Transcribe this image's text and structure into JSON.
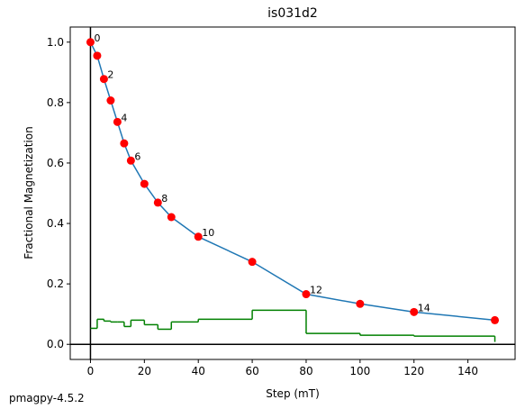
{
  "chart_data": {
    "type": "line",
    "title": "is031d2",
    "xlabel": "Step (mT)",
    "ylabel": "Fractional Magnetization",
    "footer": "pmagpy-4.5.2",
    "x": [
      0,
      2.5,
      5,
      7.5,
      10,
      12.5,
      15,
      20,
      25,
      30,
      40,
      60,
      80,
      100,
      120,
      150
    ],
    "series": [
      {
        "color": "#1f77b4",
        "marker_color": "#ff0000",
        "style": "line",
        "values": [
          1.0,
          0.955,
          0.878,
          0.807,
          0.736,
          0.665,
          0.608,
          0.531,
          0.469,
          0.421,
          0.356,
          0.273,
          0.166,
          0.134,
          0.107,
          0.08
        ],
        "point_labels": [
          "0",
          null,
          "2",
          null,
          "4",
          null,
          "6",
          null,
          "8",
          null,
          "10",
          null,
          "12",
          null,
          "14",
          null
        ]
      },
      {
        "color": "#008000",
        "style": "steps",
        "values": [
          0.053,
          0.083,
          0.077,
          0.074,
          0.074,
          0.059,
          0.08,
          0.065,
          0.05,
          0.074,
          0.083,
          0.113,
          0.036,
          0.03,
          0.027,
          0.008
        ]
      }
    ],
    "xlim": [
      -7.5,
      157.5
    ],
    "ylim": [
      -0.05,
      1.05
    ],
    "xticks": [
      0,
      20,
      40,
      60,
      80,
      100,
      120,
      140
    ],
    "yticks": [
      {
        "value": 0,
        "label": "0.0"
      },
      0.2,
      0.4,
      0.6,
      0.8,
      {
        "value": 1,
        "label": "1.0"
      }
    ],
    "axvline": 0,
    "axhline": 0
  }
}
